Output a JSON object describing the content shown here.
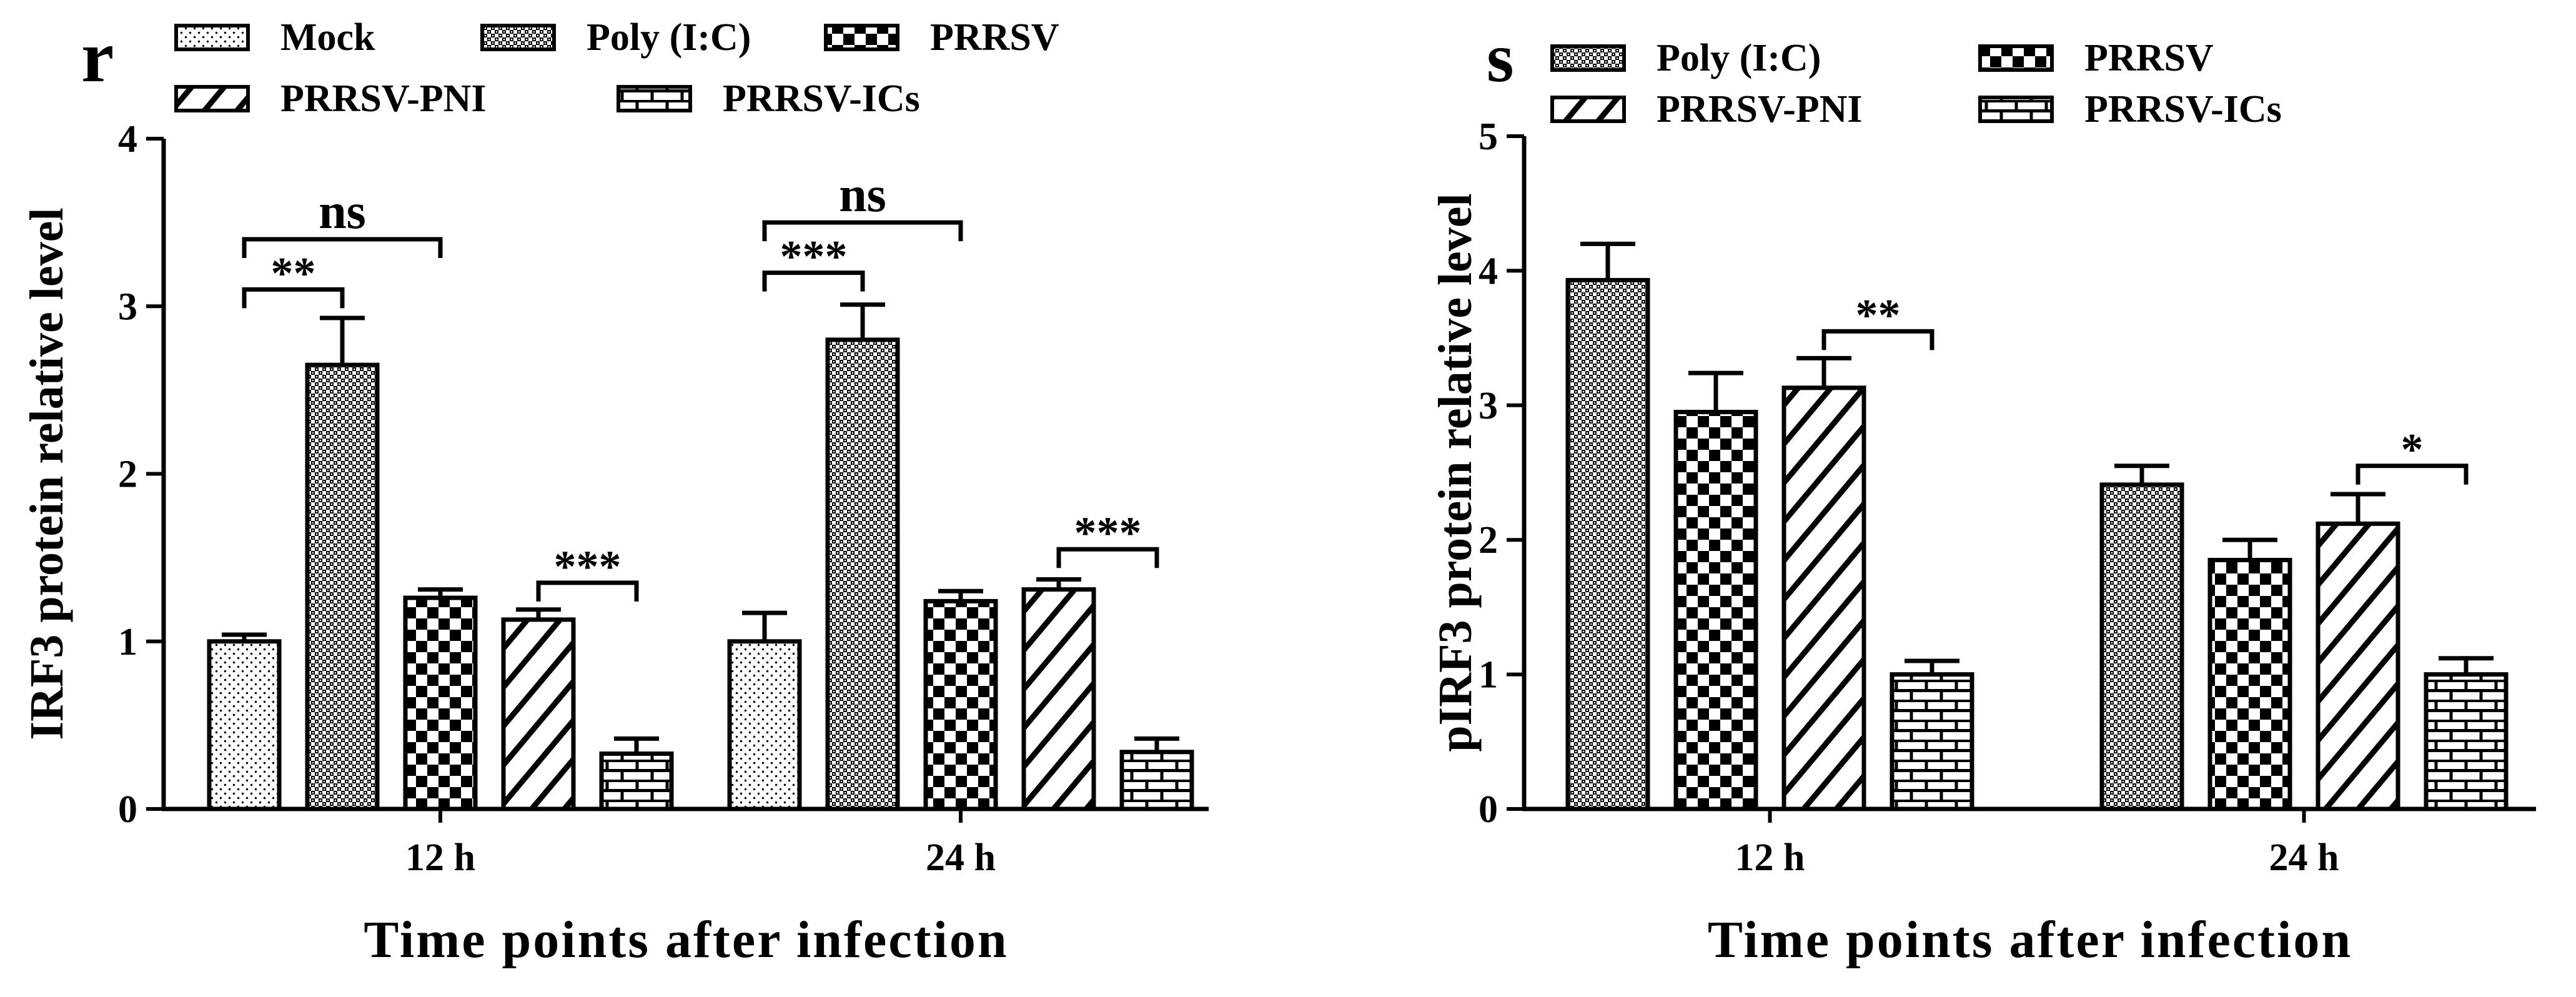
{
  "chart_data": [
    {
      "type": "bar",
      "panel_label": "r",
      "categories": [
        "12 h",
        "24 h"
      ],
      "series": [
        {
          "name": "Mock",
          "pattern": "dots",
          "values": [
            1.0,
            1.0
          ],
          "errors": [
            0.04,
            0.17
          ]
        },
        {
          "name": "Poly (I:C)",
          "pattern": "crosshatch",
          "values": [
            2.65,
            2.8
          ],
          "errors": [
            0.28,
            0.21
          ]
        },
        {
          "name": "PRRSV",
          "pattern": "checker",
          "values": [
            1.26,
            1.24
          ],
          "errors": [
            0.05,
            0.06
          ]
        },
        {
          "name": "PRRSV-PNI",
          "pattern": "diagonal",
          "values": [
            1.13,
            1.31
          ],
          "errors": [
            0.06,
            0.06
          ]
        },
        {
          "name": "PRRSV-ICs",
          "pattern": "brick",
          "values": [
            0.33,
            0.34
          ],
          "errors": [
            0.09,
            0.08
          ]
        }
      ],
      "ylabel": "IRF3 protein relative level",
      "xlabel": "Time points after infection",
      "ylim": [
        0,
        4
      ],
      "yticks": [
        0,
        1,
        2,
        3,
        4
      ],
      "legend": "top",
      "annotations": [
        {
          "label": "ns",
          "group": 0,
          "from": 0,
          "to": 2,
          "level": 3.4
        },
        {
          "label": "**",
          "group": 0,
          "from": 0,
          "to": 1,
          "level": 3.1
        },
        {
          "label": "***",
          "group": 0,
          "from": 3,
          "to": 4,
          "level": 1.35
        },
        {
          "label": "ns",
          "group": 1,
          "from": 0,
          "to": 2,
          "level": 3.5
        },
        {
          "label": "***",
          "group": 1,
          "from": 0,
          "to": 1,
          "level": 3.2
        },
        {
          "label": "***",
          "group": 1,
          "from": 3,
          "to": 4,
          "level": 1.55
        }
      ]
    },
    {
      "type": "bar",
      "panel_label": "s",
      "categories": [
        "12 h",
        "24 h"
      ],
      "series": [
        {
          "name": "Poly (I:C)",
          "pattern": "crosshatch",
          "values": [
            3.93,
            2.41
          ],
          "errors": [
            0.27,
            0.14
          ]
        },
        {
          "name": "PRRSV",
          "pattern": "checker",
          "values": [
            2.95,
            1.85
          ],
          "errors": [
            0.29,
            0.15
          ]
        },
        {
          "name": "PRRSV-PNI",
          "pattern": "diagonal",
          "values": [
            3.13,
            2.12
          ],
          "errors": [
            0.22,
            0.22
          ]
        },
        {
          "name": "PRRSV-ICs",
          "pattern": "brick",
          "values": [
            1.0,
            1.0
          ],
          "errors": [
            0.1,
            0.12
          ]
        }
      ],
      "ylabel": "pIRF3 protein relative level",
      "xlabel": "Time points after infection",
      "ylim": [
        0,
        5
      ],
      "yticks": [
        0,
        1,
        2,
        3,
        4,
        5
      ],
      "legend": "top",
      "annotations": [
        {
          "label": "**",
          "group": 0,
          "from": 2,
          "to": 3,
          "level": 3.55
        },
        {
          "label": "*",
          "group": 1,
          "from": 2,
          "to": 3,
          "level": 2.55
        }
      ]
    }
  ]
}
